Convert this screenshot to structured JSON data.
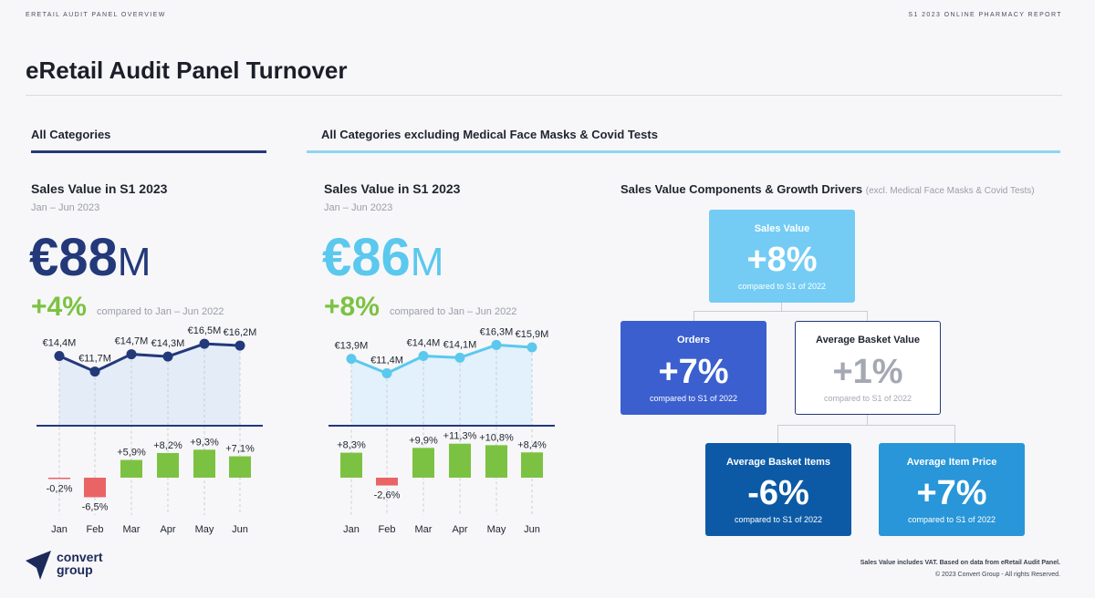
{
  "header": {
    "left": "ERETAIL AUDIT PANEL OVERVIEW",
    "right": "S1 2023 ONLINE PHARMACY REPORT",
    "title": "eRetail Audit Panel Turnover"
  },
  "sections": {
    "all": "All Categories",
    "excl": "All Categories excluding Medical Face Masks & Covid Tests"
  },
  "colors": {
    "navy": "#23397a",
    "light_blue": "#5bc8ee",
    "green": "#7cc242",
    "red": "#ea6466",
    "box_sales": "#74ccf4",
    "box_orders": "#3b5fce",
    "box_items": "#0c5aa6",
    "box_price": "#2896d8"
  },
  "panel_all": {
    "title": "Sales Value in S1 2023",
    "period": "Jan – Jun 2023",
    "kpi_value": "€88",
    "kpi_unit": "M",
    "growth": "+4%",
    "growth_note": "compared to Jan – Jun 2022"
  },
  "panel_excl": {
    "title": "Sales Value in S1 2023",
    "period": "Jan – Jun 2023",
    "kpi_value": "€86",
    "kpi_unit": "M",
    "growth": "+8%",
    "growth_note": "compared to Jan – Jun 2022"
  },
  "chart_data": [
    {
      "type": "line",
      "name": "all-categories-monthly-sales",
      "categories": [
        "Jan",
        "Feb",
        "Mar",
        "Apr",
        "May",
        "Jun"
      ],
      "values": [
        14.4,
        11.7,
        14.7,
        14.3,
        16.5,
        16.2
      ],
      "labels": [
        "€14,4M",
        "€11,7M",
        "€14,7M",
        "€14,3M",
        "€16,5M",
        "€16,2M"
      ],
      "ylim": [
        0,
        18
      ]
    },
    {
      "type": "bar",
      "name": "all-categories-monthly-growth",
      "categories": [
        "Jan",
        "Feb",
        "Mar",
        "Apr",
        "May",
        "Jun"
      ],
      "values": [
        -0.2,
        -6.5,
        5.9,
        8.2,
        9.3,
        7.1
      ],
      "labels": [
        "-0,2%",
        "-6,5%",
        "+5,9%",
        "+8,2%",
        "+9,3%",
        "+7,1%"
      ]
    },
    {
      "type": "line",
      "name": "excl-masks-tests-monthly-sales",
      "categories": [
        "Jan",
        "Feb",
        "Mar",
        "Apr",
        "May",
        "Jun"
      ],
      "values": [
        13.9,
        11.4,
        14.4,
        14.1,
        16.3,
        15.9
      ],
      "labels": [
        "€13,9M",
        "€11,4M",
        "€14,4M",
        "€14,1M",
        "€16,3M",
        "€15,9M"
      ],
      "ylim": [
        0,
        18
      ]
    },
    {
      "type": "bar",
      "name": "excl-masks-tests-monthly-growth",
      "categories": [
        "Jan",
        "Feb",
        "Mar",
        "Apr",
        "May",
        "Jun"
      ],
      "values": [
        8.3,
        -2.6,
        9.9,
        11.3,
        10.8,
        8.4
      ],
      "labels": [
        "+8,3%",
        "-2,6%",
        "+9,9%",
        "+11,3%",
        "+10,8%",
        "+8,4%"
      ]
    }
  ],
  "drivers": {
    "title": "Sales Value Components & Growth Drivers",
    "note": "(excl. Medical Face Masks & Covid Tests)",
    "sales_value": {
      "label": "Sales Value",
      "value": "+8%",
      "note": "compared to S1 of 2022"
    },
    "orders": {
      "label": "Orders",
      "value": "+7%",
      "note": "compared to S1 of 2022"
    },
    "avg_basket_value": {
      "label": "Average Basket Value",
      "value": "+1%",
      "note": "compared to S1 of 2022"
    },
    "avg_basket_items": {
      "label": "Average Basket Items",
      "value": "-6%",
      "note": "compared to S1 of 2022"
    },
    "avg_item_price": {
      "label": "Average Item Price",
      "value": "+7%",
      "note": "compared to S1 of 2022"
    }
  },
  "logo": {
    "line1": "convert",
    "line2": "group"
  },
  "footer": {
    "note": "Sales Value includes VAT. Based on data from eRetail Audit Panel.",
    "copyright": "© 2023 Convert Group - All rights Reserved."
  }
}
